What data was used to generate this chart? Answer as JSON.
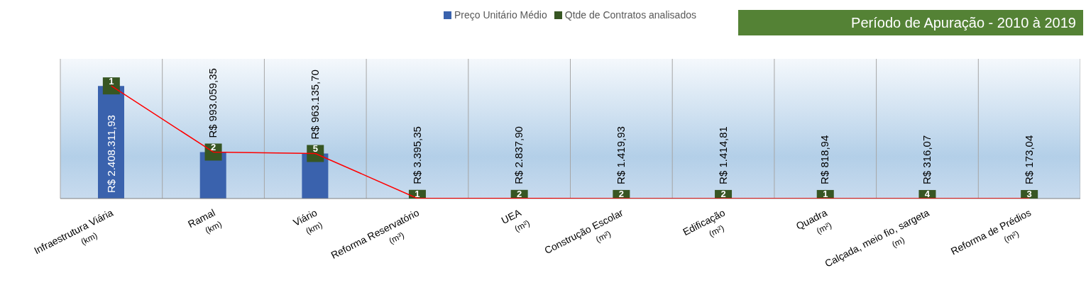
{
  "chart_data": {
    "type": "bar",
    "title": "Período de Apuração - 2010 à 2019",
    "categories": [
      "Infraestrutura Viária\n(km)",
      "Ramal\n(km)",
      "Viário\n(km)",
      "Reforma Reservatório\n(m³)",
      "UEA\n(m²)",
      "Construção Escolar\n(m²)",
      "Edificação\n(m²)",
      "Quadra\n(m²)",
      "Calçada, meio fio, sargeta\n(m)",
      "Reforma de Prédios\n(m²)"
    ],
    "series": [
      {
        "name": "Preço Unitário Médio",
        "color": "#3a62ad",
        "values": [
          2408311.93,
          993059.35,
          963135.7,
          3395.35,
          2837.9,
          1419.93,
          1414.81,
          818.94,
          316.07,
          173.04
        ],
        "value_labels": [
          "R$ 2.408.311,93",
          "R$ 993.059,35",
          "R$ 963.135,70",
          "R$ 3.395,35",
          "R$ 2.837,90",
          "R$ 1.419,93",
          "R$ 1.414,81",
          "R$ 818,94",
          "R$ 316,07",
          "R$ 173,04"
        ]
      },
      {
        "type": "line",
        "color": "#ff0000",
        "values": [
          2408311.93,
          993059.35,
          963135.7,
          3395.35,
          2837.9,
          1419.93,
          1414.81,
          818.94,
          316.07,
          173.04
        ]
      },
      {
        "name": "Qtde de Contratos analisados",
        "type": "scatter",
        "marker": "square",
        "color": "#375623",
        "values": [
          2408311.93,
          993059.35,
          963135.7,
          3395.35,
          2837.9,
          1419.93,
          1414.81,
          818.94,
          316.07,
          173.04
        ]
      }
    ],
    "annotations": [
      {
        "text": "1",
        "x": "Infraestrutura Viária\n(km)",
        "y": 2408311.93
      },
      {
        "text": "2",
        "x": "Ramal\n(km)",
        "y": 993059.35
      },
      {
        "text": "5",
        "x": "Viário\n(km)",
        "y": 963135.7
      },
      {
        "text": "1",
        "x": "Reforma Reservatório\n(m³)",
        "y": 3395.35
      },
      {
        "text": "2",
        "x": "UEA\n(m²)",
        "y": 2837.9
      },
      {
        "text": "2",
        "x": "Construção Escolar\n(m²)",
        "y": 1419.93
      },
      {
        "text": "2",
        "x": "Edificação\n(m²)",
        "y": 1414.81
      },
      {
        "text": "1",
        "x": "Quadra\n(m²)",
        "y": 818.94
      },
      {
        "text": "4",
        "x": "Calçada, meio fio, sargeta\n(m)",
        "y": 316.07
      },
      {
        "text": "3",
        "x": "Reforma de Prédios\n(m²)",
        "y": 173.04
      }
    ],
    "grid": "x",
    "legend": "top"
  }
}
